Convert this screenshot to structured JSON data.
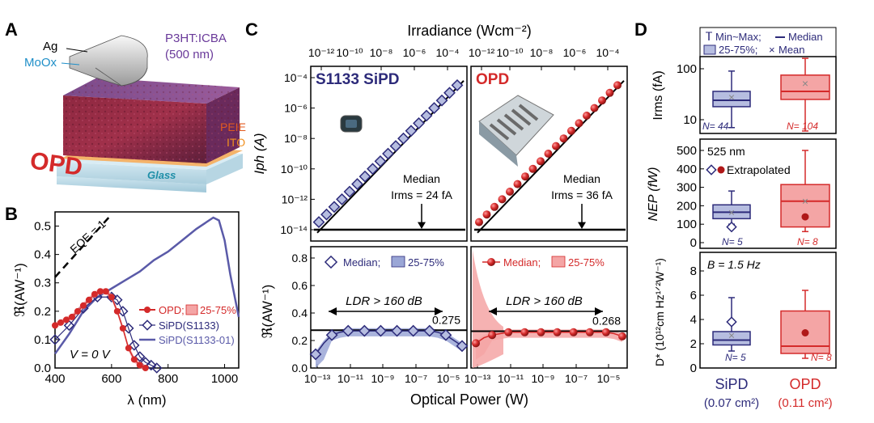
{
  "panels": {
    "a": "A",
    "b": "B",
    "c": "C",
    "d": "D"
  },
  "panel_a": {
    "ag": "Ag",
    "moox": "MoOx",
    "p3ht": "P3HT:ICBA",
    "thickness": "(500 nm)",
    "peie": "PEIE",
    "ito": "ITO",
    "glass": "Glass",
    "opd": "OPD"
  },
  "colors": {
    "navy": "#2d2b7a",
    "blue": "#5a5aa8",
    "red": "#d42a2a",
    "pink": "#f4a5a5",
    "lightblue": "#b6bde0"
  },
  "chart_data": [
    {
      "id": "B",
      "type": "line",
      "xlabel": "λ (nm)",
      "ylabel": "ℜ(AW⁻¹)",
      "xlim": [
        400,
        1050
      ],
      "ylim": [
        0,
        0.55
      ],
      "xticks": [
        "400",
        "600",
        "800",
        "1000"
      ],
      "yticks": [
        "0.0",
        "0.1",
        "0.2",
        "0.3",
        "0.4",
        "0.5"
      ],
      "eqe_label": "EQE = 1",
      "bias_label": "V = 0 V",
      "legend": [
        "OPD;",
        "25-75%",
        "SiPD(S1133)",
        "SiPD(S1133-01)"
      ],
      "series": [
        {
          "name": "SiPD(S1133-01)",
          "x": [
            400,
            450,
            500,
            550,
            600,
            650,
            700,
            750,
            800,
            850,
            900,
            930,
            960,
            980,
            1000,
            1020,
            1050
          ],
          "y": [
            0.05,
            0.12,
            0.2,
            0.25,
            0.28,
            0.31,
            0.34,
            0.38,
            0.41,
            0.45,
            0.49,
            0.51,
            0.53,
            0.52,
            0.45,
            0.33,
            0.18
          ]
        },
        {
          "name": "SiPD(S1133)",
          "x": [
            400,
            450,
            500,
            550,
            600,
            620,
            640,
            660,
            680,
            700,
            720,
            740,
            760
          ],
          "y": [
            0.1,
            0.15,
            0.21,
            0.25,
            0.25,
            0.24,
            0.2,
            0.14,
            0.08,
            0.04,
            0.02,
            0.01,
            0.0
          ]
        },
        {
          "name": "OPD",
          "x": [
            400,
            420,
            440,
            460,
            480,
            500,
            520,
            540,
            560,
            580,
            600,
            620,
            640,
            660,
            680,
            700,
            720
          ],
          "y": [
            0.15,
            0.16,
            0.17,
            0.18,
            0.2,
            0.22,
            0.24,
            0.26,
            0.27,
            0.27,
            0.25,
            0.2,
            0.14,
            0.07,
            0.03,
            0.01,
            0.0
          ]
        }
      ]
    },
    {
      "id": "C",
      "type": "scatter",
      "top_axis": "Irradiance (Wcm⁻²)",
      "top_ticks": [
        "10⁻¹²",
        "10⁻¹⁰",
        "10⁻⁸",
        "10⁻⁶",
        "10⁻⁴"
      ],
      "xlabel": "Optical Power (W)",
      "xticks": [
        "10⁻¹³",
        "10⁻¹¹",
        "10⁻⁹",
        "10⁻⁷",
        "10⁻⁵"
      ],
      "upper_ylabel": "Iph (A)",
      "upper_yticks": [
        "10⁻⁴",
        "10⁻⁶",
        "10⁻⁸",
        "10⁻¹⁰",
        "10⁻¹²",
        "10⁻¹⁴"
      ],
      "lower_ylabel": "ℜ(AW⁻¹)",
      "lower_yticks": [
        "0.0",
        "0.2",
        "0.4",
        "0.6",
        "0.8"
      ],
      "sipd_title": "S1133 SiPD",
      "opd_title": "OPD",
      "median_label": "Median",
      "sipd_irms": "Irms = 24 fA",
      "opd_irms": "Irms = 36 fA",
      "ldr_label": "LDR > 160 dB",
      "legend_median": "Median;",
      "legend_range": "25-75%",
      "sipd_ref": "0.275",
      "opd_ref": "0.268",
      "sipd_iph_log": [
        -13.5,
        -13,
        -12.5,
        -12,
        -11.5,
        -11,
        -10.5,
        -10,
        -9.5,
        -9,
        -8.5,
        -8,
        -7.5,
        -7,
        -6.5,
        -6,
        -5.5,
        -5,
        -4.5
      ],
      "opd_iph_log": [
        -13.5,
        -13,
        -12.5,
        -12,
        -11.5,
        -11,
        -10.5,
        -10,
        -9.5,
        -9,
        -8.5,
        -8,
        -7.5,
        -7,
        -6.5,
        -6,
        -5.5,
        -5,
        -4.5
      ],
      "power_log": [
        -13.9,
        -13.5,
        -13,
        -12.5,
        -12,
        -11.5,
        -11,
        -10.5,
        -10,
        -9.5,
        -9,
        -8.5,
        -8,
        -7.5,
        -7,
        -6.5,
        -6,
        -5.5,
        -5
      ],
      "sipd_resp": [
        0.1,
        0.18,
        0.24,
        0.26,
        0.27,
        0.27,
        0.27,
        0.27,
        0.27,
        0.27,
        0.27,
        0.27,
        0.27,
        0.27,
        0.27,
        0.26,
        0.24,
        0.2,
        0.16
      ],
      "opd_resp": [
        0.18,
        0.22,
        0.24,
        0.25,
        0.26,
        0.26,
        0.26,
        0.26,
        0.26,
        0.26,
        0.26,
        0.26,
        0.26,
        0.26,
        0.26,
        0.26,
        0.26,
        0.25,
        0.23
      ]
    },
    {
      "id": "D",
      "type": "box",
      "legend": [
        "Min~Max;",
        "Median",
        "25-75%;",
        "Mean"
      ],
      "categories": [
        "SiPD",
        "OPD"
      ],
      "areas": [
        "(0.07 cm²)",
        "(0.11 cm²)"
      ],
      "irms": {
        "ylabel": "Irms (fA)",
        "yticks": [
          "100",
          "10"
        ],
        "n": [
          "N= 44",
          "N= 104"
        ],
        "sipd": {
          "min": 7,
          "q1": 18,
          "median": 24,
          "q3": 36,
          "max": 90,
          "mean": 28
        },
        "opd": {
          "min": 6,
          "q1": 25,
          "median": 36,
          "q3": 75,
          "max": 160,
          "mean": 52
        }
      },
      "nep": {
        "ylabel": "NEP (fW)",
        "yticks": [
          "500",
          "400",
          "300",
          "200",
          "100",
          "0"
        ],
        "wavelength": "525 nm",
        "extrap": "Extrapolated",
        "n": [
          "N= 5",
          "N= 8"
        ],
        "sipd": {
          "min": 100,
          "q1": 130,
          "median": 165,
          "q3": 205,
          "max": 280,
          "mean": 165,
          "extrap": 85
        },
        "opd": {
          "min": 60,
          "q1": 85,
          "median": 225,
          "q3": 315,
          "max": 500,
          "mean": 225,
          "extrap": 140
        }
      },
      "dstar": {
        "ylabel": "D* (10¹²cm Hz¹ᐟ²W⁻¹)",
        "yticks": [
          "8",
          "6",
          "4",
          "2",
          "0"
        ],
        "bandwidth": "B = 1.5 Hz",
        "n": [
          "N= 5",
          "N= 8"
        ],
        "sipd": {
          "min": 1.4,
          "q1": 1.9,
          "median": 2.3,
          "q3": 3.0,
          "max": 5.8,
          "mean": 2.7,
          "extrap": 3.8
        },
        "opd": {
          "min": 0.8,
          "q1": 1.2,
          "median": 1.8,
          "q3": 4.7,
          "max": 6.4,
          "mean": 2.9,
          "extrap": 2.9
        }
      }
    }
  ]
}
